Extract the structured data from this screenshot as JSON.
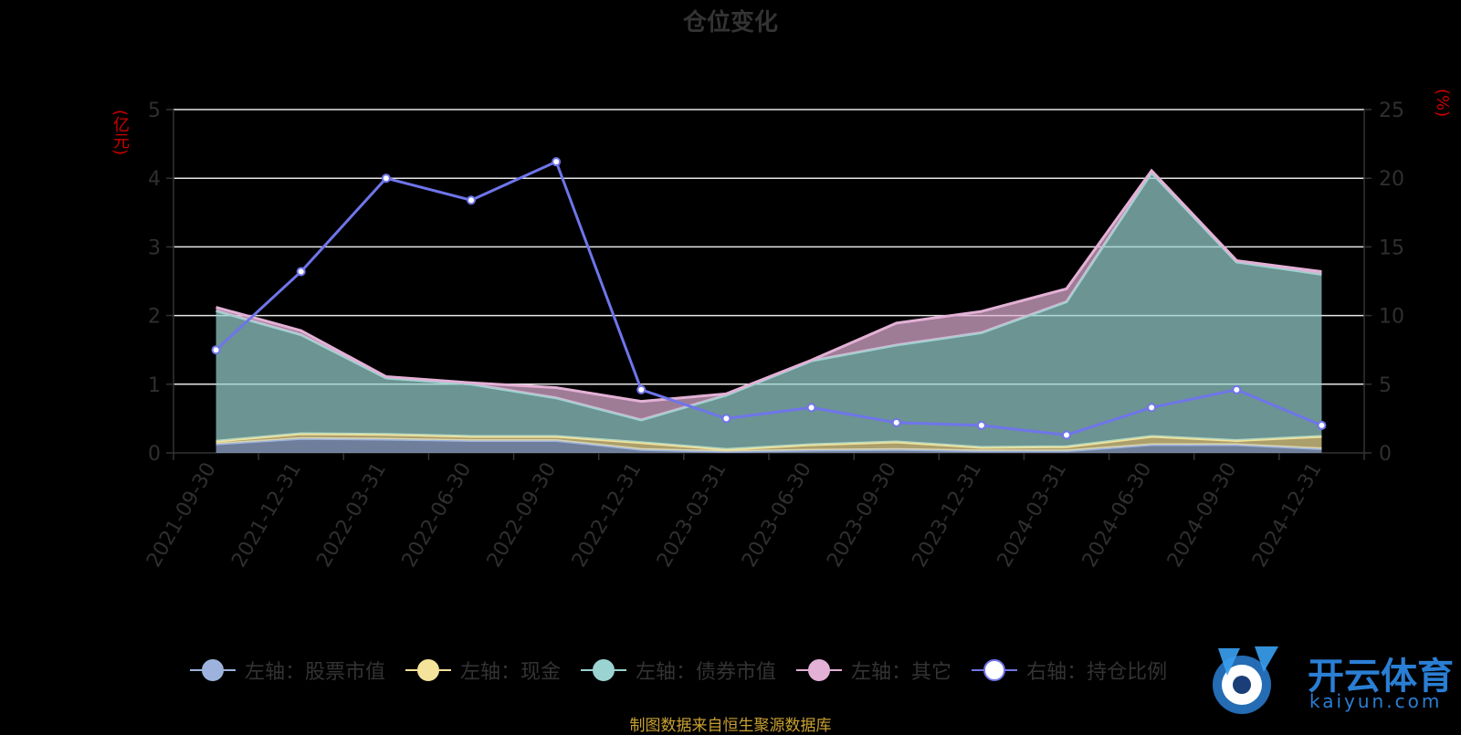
{
  "title": "仓位变化",
  "left_unit": "(亿元)",
  "right_unit": "(%)",
  "source": "制图数据来自恒生聚源数据库",
  "watermark": {
    "name": "开云体育",
    "domain": "kaiyun.com"
  },
  "colors": {
    "stock": "#9db3dd",
    "cash": "#f4e39a",
    "bond": "#9ad3d0",
    "other": "#e3b1d6",
    "ratio": "#6f75ea",
    "grid": "#e6e6e6",
    "axis_text": "#2f2f2f"
  },
  "legend": [
    {
      "label": "左轴：股票市值",
      "key": "stock"
    },
    {
      "label": "左轴：现金",
      "key": "cash"
    },
    {
      "label": "左轴：债券市值",
      "key": "bond"
    },
    {
      "label": "左轴：其它",
      "key": "other"
    },
    {
      "label": "右轴：持仓比例",
      "key": "ratio"
    }
  ],
  "chart_data": {
    "type": "area",
    "x": [
      "2021-09-30",
      "2021-12-31",
      "2022-03-31",
      "2022-06-30",
      "2022-09-30",
      "2022-12-31",
      "2023-03-31",
      "2023-06-30",
      "2023-09-30",
      "2023-12-31",
      "2024-03-31",
      "2024-06-30",
      "2024-09-30",
      "2024-12-31"
    ],
    "stacked": true,
    "series": [
      {
        "name": "左轴：股票市值",
        "axis": "left",
        "values": [
          0.13,
          0.21,
          0.2,
          0.18,
          0.18,
          0.05,
          0.02,
          0.04,
          0.05,
          0.03,
          0.03,
          0.12,
          0.12,
          0.06
        ]
      },
      {
        "name": "左轴：现金",
        "axis": "left",
        "values": [
          0.04,
          0.07,
          0.07,
          0.06,
          0.06,
          0.1,
          0.03,
          0.08,
          0.11,
          0.05,
          0.06,
          0.12,
          0.06,
          0.18
        ]
      },
      {
        "name": "左轴：债券市值",
        "axis": "left",
        "values": [
          1.9,
          1.44,
          0.82,
          0.76,
          0.56,
          0.33,
          0.79,
          1.22,
          1.41,
          1.67,
          2.11,
          3.84,
          2.6,
          2.36
        ]
      },
      {
        "name": "左轴：其它",
        "axis": "left",
        "values": [
          0.05,
          0.06,
          0.02,
          0.02,
          0.15,
          0.27,
          0.02,
          0.01,
          0.32,
          0.31,
          0.19,
          0.03,
          0.02,
          0.04
        ]
      },
      {
        "name": "右轴：持仓比例",
        "axis": "right",
        "type": "line",
        "values": [
          7.5,
          13.2,
          20.0,
          18.4,
          21.2,
          4.6,
          2.5,
          3.3,
          2.2,
          2.0,
          1.3,
          3.3,
          4.6,
          2.0
        ]
      }
    ],
    "left_axis": {
      "label": "(亿元)",
      "ylim": [
        0,
        5
      ],
      "ticks": [
        0,
        1,
        2,
        3,
        4,
        5
      ]
    },
    "right_axis": {
      "label": "(%)",
      "ylim": [
        0,
        25
      ],
      "ticks": [
        0,
        5,
        10,
        15,
        20,
        25
      ]
    },
    "grid": true,
    "legend_position": "bottom"
  }
}
